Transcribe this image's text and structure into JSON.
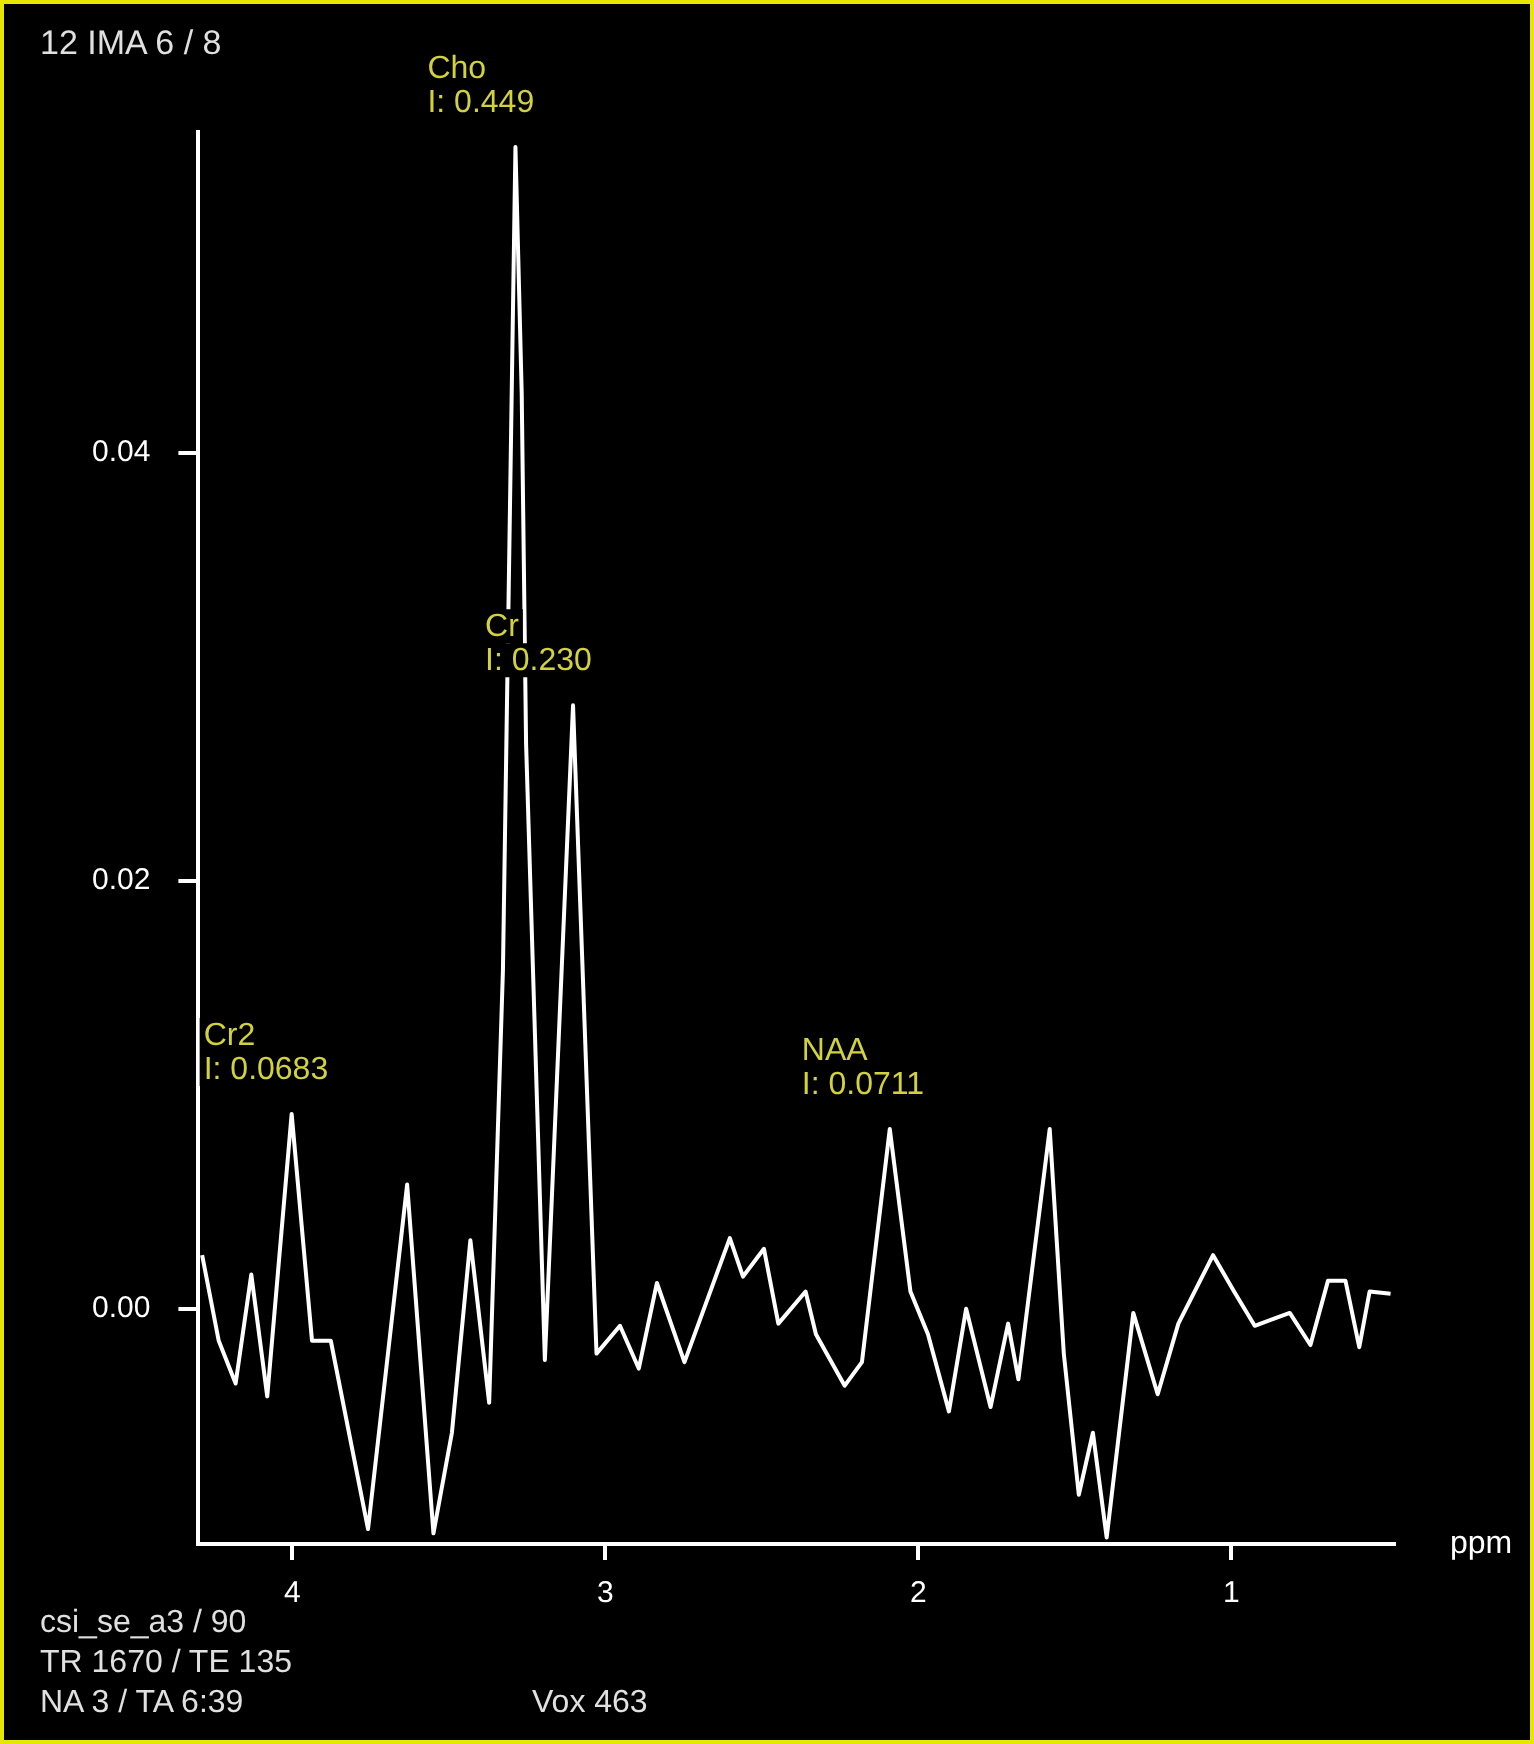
{
  "chart_data": {
    "type": "line",
    "title": "12 IMA 6 / 8",
    "xlabel": "ppm",
    "x": [
      4.288,
      4.235,
      4.181,
      4.131,
      4.08,
      4.002,
      3.937,
      3.877,
      3.758,
      3.633,
      3.549,
      3.49,
      3.431,
      3.371,
      3.327,
      3.287,
      3.267,
      3.253,
      3.193,
      3.103,
      3.028,
      2.953,
      2.893,
      2.835,
      2.747,
      2.602,
      2.56,
      2.493,
      2.447,
      2.36,
      2.327,
      2.235,
      2.18,
      2.091,
      2.025,
      1.969,
      1.902,
      1.847,
      1.769,
      1.713,
      1.68,
      1.58,
      1.535,
      1.487,
      1.442,
      1.398,
      1.313,
      1.235,
      1.169,
      1.058,
      0.991,
      0.925,
      0.813,
      0.747,
      0.691,
      0.635,
      0.591,
      0.558,
      0.491
    ],
    "series": [
      {
        "color": "#ffffff",
        "values": [
          0.0025,
          -0.0015,
          -0.0035,
          0.0016,
          -0.0041,
          0.0091,
          -0.0015,
          -0.0015,
          -0.0103,
          0.0058,
          -0.0105,
          -0.0058,
          0.0032,
          -0.0044,
          0.0158,
          0.0543,
          0.0428,
          0.0264,
          -0.0024,
          0.0282,
          -0.0021,
          -0.0008,
          -0.0028,
          0.0012,
          -0.0025,
          0.0033,
          0.0015,
          0.0028,
          -0.0007,
          0.0008,
          -0.0012,
          -0.0036,
          -0.0025,
          0.0084,
          0.0008,
          -0.0012,
          -0.0048,
          0.0,
          -0.0046,
          -0.0007,
          -0.0033,
          0.0084,
          -0.0021,
          -0.0087,
          -0.0058,
          -0.0107,
          -0.0002,
          -0.004,
          -0.0007,
          0.0025,
          0.0008,
          -0.0008,
          -0.0002,
          -0.0017,
          0.0013,
          0.0013,
          -0.0018,
          0.0008,
          0.0007
        ]
      }
    ],
    "xlim": [
      4.3,
      0.48
    ],
    "xticks": [
      4,
      3,
      2,
      1
    ],
    "ylim": [
      -0.011,
      0.055
    ],
    "yticks": [
      {
        "value": 0,
        "label": "0.00"
      },
      {
        "value": 0.02,
        "label": "0.02"
      },
      {
        "value": 0.04,
        "label": "0.04"
      }
    ],
    "grid": false,
    "legend": false,
    "marker": "none",
    "line_style": "solid",
    "annotations": [
      {
        "text": "Cho\nI: 0.449",
        "x": 3.287,
        "y": 0.0543
      },
      {
        "text": "Cr\nI: 0.230",
        "x": 3.103,
        "y": 0.0282
      },
      {
        "text": "Cr2\nI: 0.0683",
        "x": 4.002,
        "y": 0.0091
      },
      {
        "text": "NAA\nI: 0.0711",
        "x": 2.091,
        "y": 0.0084
      },
      "csi_se_a3 / 90\nTR 1670 / TE 135\nNA 3 / TA 6:39",
      "Vox 463"
    ]
  }
}
